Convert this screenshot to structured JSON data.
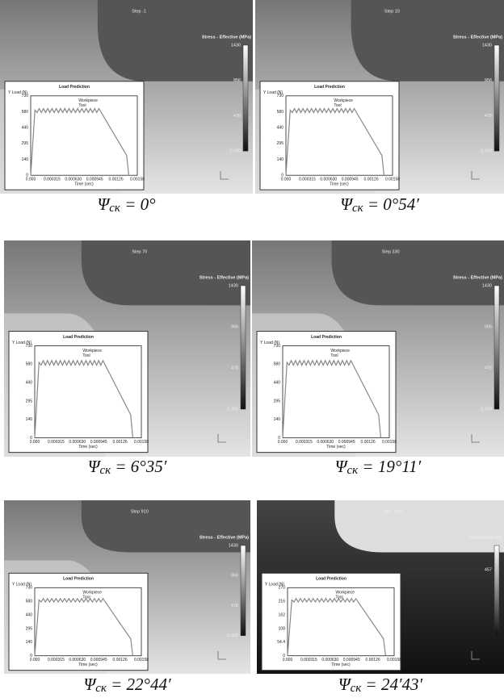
{
  "panels": [
    {
      "step": "Step -1",
      "legend_title": "Stress - Effective (MPa)",
      "legend_ticks": [
        "1430",
        "956",
        "478",
        "0.000"
      ],
      "inset": {
        "title": "Load Prediction",
        "y_label": "Y Load (N)",
        "y_ticks": [
          "730",
          "580",
          "440",
          "295",
          "140",
          "0"
        ],
        "x_ticks": [
          "0.000",
          "0.000315",
          "0.000630",
          "0.000945",
          "0.00126",
          "0.00158"
        ],
        "x_label": "Time (sec)",
        "legend": [
          "Workpiece",
          "Tool"
        ]
      },
      "caption": {
        "symbol": "Ψ",
        "subscript": "ск",
        "value": " = 0°"
      }
    },
    {
      "step": "Step 10",
      "legend_title": "Stress - Effective (MPa)",
      "legend_ticks": [
        "1430",
        "956",
        "478",
        "0.000"
      ],
      "inset": {
        "title": "Load Prediction",
        "y_label": "Y Load (N)",
        "y_ticks": [
          "730",
          "580",
          "440",
          "295",
          "140",
          "0"
        ],
        "x_ticks": [
          "0.000",
          "0.000315",
          "0.000630",
          "0.000945",
          "0.00126",
          "0.00158"
        ],
        "x_label": "Time (sec)",
        "legend": [
          "Workpiece",
          "Tool"
        ]
      },
      "caption": {
        "symbol": "Ψ",
        "subscript": "ск",
        "value": " = 0°54′"
      }
    },
    {
      "step": "Step 70",
      "legend_title": "Stress - Effective (MPa)",
      "legend_ticks": [
        "1430",
        "956",
        "478",
        "0.000"
      ],
      "inset": {
        "title": "Load Prediction",
        "y_label": "Y Load (N)",
        "y_ticks": [
          "730",
          "580",
          "440",
          "295",
          "140",
          "0"
        ],
        "x_ticks": [
          "0.000",
          "0.000315",
          "0.000630",
          "0.000945",
          "0.00126",
          "0.00158"
        ],
        "x_label": "Time (sec)",
        "legend": [
          "Workpiece",
          "Tool"
        ]
      },
      "caption": {
        "symbol": "Ψ",
        "subscript": "ск",
        "value": " = 6°35′"
      }
    },
    {
      "step": "Step 330",
      "legend_title": "Stress - Effective (MPa)",
      "legend_ticks": [
        "1430",
        "956",
        "478",
        "0.000"
      ],
      "inset": {
        "title": "Load Prediction",
        "y_label": "Y Load (N)",
        "y_ticks": [
          "730",
          "580",
          "440",
          "295",
          "140",
          "0"
        ],
        "x_ticks": [
          "0.000",
          "0.000315",
          "0.000630",
          "0.000945",
          "0.00126",
          "0.00158"
        ],
        "x_label": "Time (sec)",
        "legend": [
          "Workpiece",
          "Tool"
        ]
      },
      "caption": {
        "symbol": "Ψ",
        "subscript": "ск",
        "value": " = 19°11′"
      }
    },
    {
      "step": "Step 910",
      "legend_title": "Stress - Effective (MPa)",
      "legend_ticks": [
        "1430",
        "956",
        "478",
        "0.000"
      ],
      "inset": {
        "title": "Load Prediction",
        "y_label": "Y Load (N)",
        "y_ticks": [
          "730",
          "580",
          "440",
          "295",
          "140",
          "0"
        ],
        "x_ticks": [
          "0.000",
          "0.000315",
          "0.000630",
          "0.000945",
          "0.00126",
          "0.00158"
        ],
        "x_label": "Time (sec)",
        "legend": [
          "Workpiece",
          "Tool"
        ]
      },
      "caption": {
        "symbol": "Ψ",
        "subscript": "ск",
        "value": " = 22°44′"
      }
    },
    {
      "step": "Step 1241",
      "legend_title": "Temperature (C)",
      "legend_ticks": [
        "457"
      ],
      "inset": {
        "title": "Load Prediction",
        "y_label": "Y Load (N)",
        "y_ticks": [
          "270",
          "216",
          "162",
          "108",
          "54.4",
          "0"
        ],
        "x_ticks": [
          "0.000",
          "0.000315",
          "0.000630",
          "0.000945",
          "0.00126",
          "0.00158"
        ],
        "x_label": "Time (sec)",
        "legend": [
          "Workpiece",
          "Tool"
        ]
      },
      "caption": {
        "symbol": "Ψ",
        "subscript": "ск",
        "value": " = 24′43′"
      }
    }
  ]
}
